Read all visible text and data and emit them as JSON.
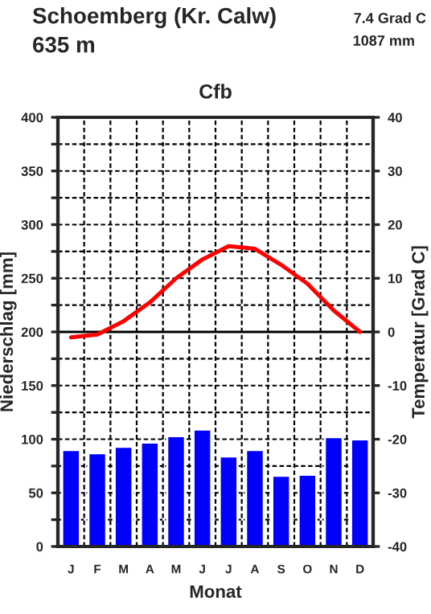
{
  "chart_data": {
    "type": "bar",
    "title": "Schoemberg (Kr. Calw)",
    "subtitle": "Cfb",
    "annotations": [
      "635 m",
      "7.4 Grad C",
      "1087 mm"
    ],
    "xlabel": "Monat",
    "ylabel": "Niederschlag [mm]",
    "y2label": "Temperatur [Grad C]",
    "categories": [
      "J",
      "F",
      "M",
      "A",
      "M",
      "J",
      "J",
      "A",
      "S",
      "O",
      "N",
      "D"
    ],
    "series": [
      {
        "color": "#0000ff",
        "values": [
          90,
          87,
          93,
          97,
          103,
          109,
          84,
          90,
          66,
          67,
          102,
          100
        ]
      },
      {
        "type": "line",
        "axis": "y2",
        "color": "#ff0000",
        "values": [
          -1,
          -0.5,
          2,
          5.5,
          10,
          13.5,
          16,
          15.5,
          12.5,
          9,
          4,
          0
        ]
      }
    ],
    "ylim": [
      0,
      400
    ],
    "yticks": [
      0,
      {
        "value": 25,
        "label": null
      },
      50,
      {
        "value": 75,
        "label": null
      },
      100,
      {
        "value": 125,
        "label": null
      },
      150,
      {
        "value": 175,
        "label": null
      },
      200,
      {
        "value": 225,
        "label": null
      },
      250,
      {
        "value": 275,
        "label": null
      },
      300,
      {
        "value": 325,
        "label": null
      },
      350,
      {
        "value": 375,
        "label": null
      },
      400
    ],
    "y2lim": [
      -40,
      40
    ],
    "y2ticks": [
      -40,
      -30,
      -20,
      -10,
      0,
      10,
      20,
      30,
      40
    ],
    "ref_lines": [
      {
        "axis": "y2",
        "value": 0,
        "color": "#000000",
        "line_style": "solid"
      }
    ],
    "grid": true,
    "legend": false
  }
}
